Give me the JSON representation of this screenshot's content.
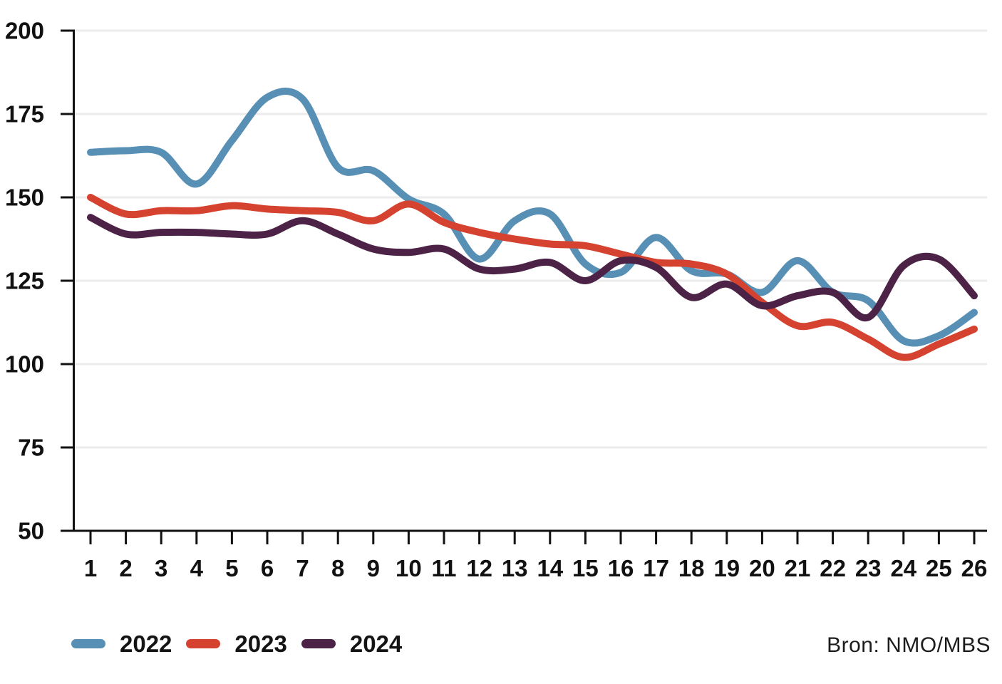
{
  "chart_data": {
    "type": "line",
    "x": [
      1,
      2,
      3,
      4,
      5,
      6,
      7,
      8,
      9,
      10,
      11,
      12,
      13,
      14,
      15,
      16,
      17,
      18,
      19,
      20,
      21,
      22,
      23,
      24,
      25,
      26
    ],
    "series": [
      {
        "name": "2022",
        "color": "#5890B5",
        "values": [
          163.5,
          164,
          163.5,
          154,
          167,
          180,
          179.5,
          159,
          158,
          149.5,
          145,
          131.5,
          143,
          145,
          130,
          127.5,
          138,
          128,
          127,
          121.5,
          131,
          121.5,
          119,
          107,
          108.5,
          115.5
        ]
      },
      {
        "name": "2023",
        "color": "#D5422F",
        "values": [
          150,
          145,
          146,
          146,
          147.5,
          146.5,
          146,
          145.5,
          143,
          148,
          142.5,
          139.5,
          137.5,
          136,
          135.5,
          133,
          130.5,
          130,
          127,
          118.5,
          111.5,
          112.5,
          107.5,
          102,
          106,
          110.5
        ]
      },
      {
        "name": "2024",
        "color": "#4C2347",
        "values": [
          144,
          139,
          139.5,
          139.5,
          139,
          139,
          143,
          139,
          134.5,
          133.5,
          134.5,
          128.5,
          128.5,
          130.5,
          125,
          131,
          129,
          120,
          124,
          117.5,
          120.5,
          121.5,
          114,
          129.5,
          131.5,
          120.5
        ]
      }
    ],
    "title": "",
    "xlabel": "",
    "ylabel": "",
    "ylim": [
      50,
      200
    ],
    "yticks": [
      50,
      75,
      100,
      125,
      150,
      175,
      200
    ],
    "grid": "horizontal",
    "legend_position": "bottom-left",
    "source": "Bron: NMO/MBS",
    "colors": {
      "grid": "#EBEBEB",
      "axis": "#111111",
      "text": "#111111"
    }
  },
  "legend": {
    "items": [
      {
        "label": "2022"
      },
      {
        "label": "2023"
      },
      {
        "label": "2024"
      }
    ]
  },
  "source_label": "Bron: NMO/MBS"
}
